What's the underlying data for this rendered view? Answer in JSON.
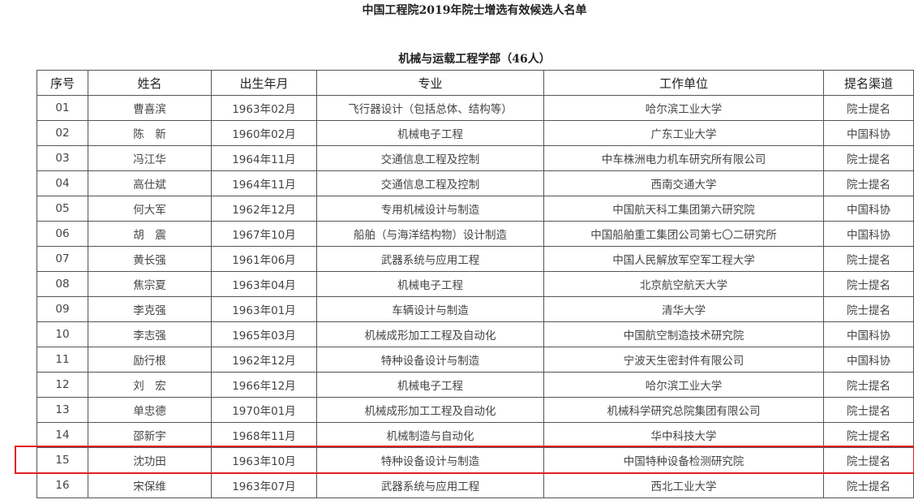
{
  "title": "中国工程院2019年院士增选有效候选人名单",
  "subtitle": "机械与运载工程学部（46人）",
  "headers": [
    "序号",
    "姓名",
    "出生年月",
    "专业",
    "工作单位",
    "提名渠道"
  ],
  "rows": [
    [
      "01",
      "曹喜滨",
      "1963年02月",
      "飞行器设计（包括总体、结构等）",
      "哈尔滨工业大学",
      "院士提名"
    ],
    [
      "02",
      "陈　新",
      "1960年02月",
      "机械电子工程",
      "广东工业大学",
      "中国科协"
    ],
    [
      "03",
      "冯江华",
      "1964年11月",
      "交通信息工程及控制",
      "中车株洲电力机车研究所有限公司",
      "院士提名"
    ],
    [
      "04",
      "高仕斌",
      "1964年11月",
      "交通信息工程及控制",
      "西南交通大学",
      "院士提名"
    ],
    [
      "05",
      "何大军",
      "1962年12月",
      "专用机械设计与制造",
      "中国航天科工集团第六研究院",
      "中国科协"
    ],
    [
      "06",
      "胡　震",
      "1967年10月",
      "船舶（与海洋结构物）设计制造",
      "中国船舶重工集团公司第七〇二研究所",
      "中国科协"
    ],
    [
      "07",
      "黄长强",
      "1961年06月",
      "武器系统与应用工程",
      "中国人民解放军空军工程大学",
      "院士提名"
    ],
    [
      "08",
      "焦宗夏",
      "1963年04月",
      "机械电子工程",
      "北京航空航天大学",
      "院士提名"
    ],
    [
      "09",
      "李克强",
      "1963年01月",
      "车辆设计与制造",
      "清华大学",
      "院士提名"
    ],
    [
      "10",
      "李志强",
      "1965年03月",
      "机械成形加工工程及自动化",
      "中国航空制造技术研究院",
      "中国科协"
    ],
    [
      "11",
      "励行根",
      "1962年12月",
      "特种设备设计与制造",
      "宁波天生密封件有限公司",
      "中国科协"
    ],
    [
      "12",
      "刘　宏",
      "1966年12月",
      "机械电子工程",
      "哈尔滨工业大学",
      "院士提名"
    ],
    [
      "13",
      "单忠德",
      "1970年01月",
      "机械成形加工工程及自动化",
      "机械科学研究总院集团有限公司",
      "院士提名"
    ],
    [
      "14",
      "邵新宇",
      "1968年11月",
      "机械制造与自动化",
      "华中科技大学",
      "院士提名"
    ],
    [
      "15",
      "沈功田",
      "1963年10月",
      "特种设备设计与制造",
      "中国特种设备检测研究院",
      "院士提名"
    ],
    [
      "16",
      "宋保维",
      "1963年07月",
      "武器系统与应用工程",
      "西北工业大学",
      "院士提名"
    ]
  ],
  "highlight_color": "#e02020"
}
